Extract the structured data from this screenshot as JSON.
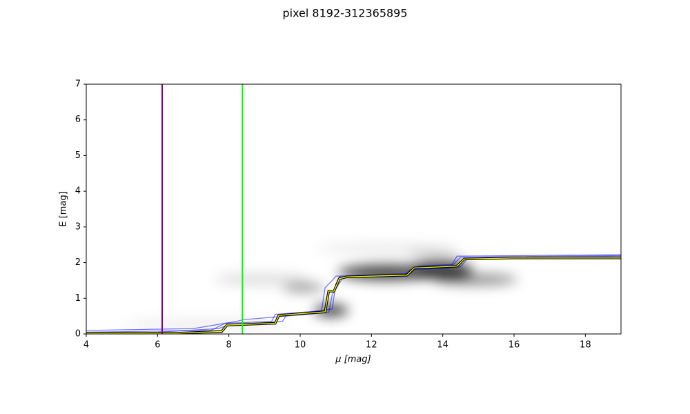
{
  "chart_data": {
    "type": "line",
    "title": "pixel 8192-312365895",
    "xlabel": "μ [mag]",
    "ylabel": "E [mag]",
    "xlim": [
      4,
      19
    ],
    "ylim": [
      0,
      7
    ],
    "xticks": [
      4,
      6,
      8,
      10,
      12,
      14,
      16,
      18
    ],
    "yticks": [
      0,
      1,
      2,
      3,
      4,
      5,
      6,
      7
    ],
    "grid": false,
    "vlines": [
      {
        "x": 6.13,
        "color": "#800080"
      },
      {
        "x": 8.38,
        "color": "#00ff00"
      }
    ],
    "series": [
      {
        "color": "#0000ff",
        "x": [
          4,
          7.5,
          7.9,
          9.2,
          9.3,
          10.6,
          10.7,
          10.9,
          11.0,
          13.1,
          13.3,
          14.3,
          14.5,
          19
        ],
        "values": [
          0.05,
          0.1,
          0.3,
          0.35,
          0.55,
          0.65,
          1.3,
          1.5,
          1.62,
          1.7,
          1.9,
          1.95,
          2.15,
          2.2
        ]
      },
      {
        "color": "#0000ff",
        "x": [
          4,
          6,
          7.7,
          8.0,
          9.5,
          9.6,
          10.8,
          10.9,
          11.2,
          13.0,
          13.2,
          14.5,
          14.7,
          19
        ],
        "values": [
          0.0,
          0.05,
          0.15,
          0.25,
          0.35,
          0.5,
          0.6,
          1.1,
          1.58,
          1.62,
          1.82,
          1.88,
          2.12,
          2.18
        ]
      },
      {
        "color": "#0000ff",
        "x": [
          4,
          7,
          8.2,
          8.4,
          9.6,
          9.8,
          10.9,
          11.0,
          11.1,
          12.9,
          13.1,
          14.2,
          14.4,
          19
        ],
        "values": [
          0.1,
          0.15,
          0.35,
          0.4,
          0.5,
          0.55,
          0.7,
          1.4,
          1.6,
          1.65,
          1.8,
          1.85,
          2.18,
          2.22
        ]
      },
      {
        "color": "#ffff00",
        "outline": "#000000",
        "x": [
          4,
          6.5,
          7.8,
          7.95,
          9.3,
          9.4,
          10.7,
          10.8,
          10.95,
          11.1,
          11.3,
          13.0,
          13.2,
          14.4,
          14.6,
          16,
          19
        ],
        "values": [
          0.02,
          0.02,
          0.07,
          0.25,
          0.3,
          0.52,
          0.62,
          1.2,
          1.2,
          1.55,
          1.6,
          1.65,
          1.85,
          1.9,
          2.1,
          2.13,
          2.13
        ]
      }
    ]
  }
}
